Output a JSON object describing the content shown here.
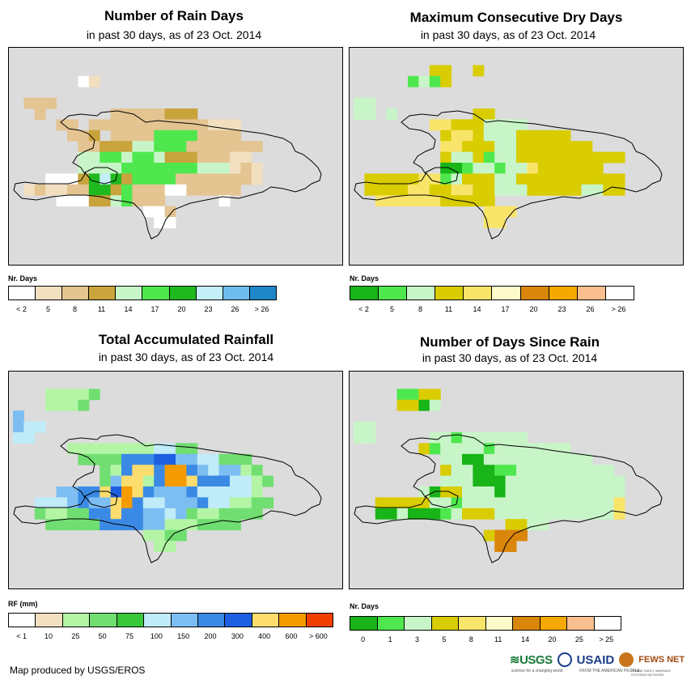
{
  "panels": [
    {
      "id": "rain_days",
      "title": "Number of Rain Days",
      "subtitle": "in past 30 days, as of 23 Oct. 2014",
      "legend_title": "Nr. Days",
      "legend_labels": [
        "< 2",
        "5",
        "8",
        "11",
        "14",
        "17",
        "20",
        "23",
        "26",
        "> 26"
      ],
      "legend_colors": [
        "#ffffff",
        "#f2dfbf",
        "#e4c491",
        "#c9a33c",
        "#c8f5c8",
        "#4ee84e",
        "#1fb91f",
        "#c4eef8",
        "#6fbdee",
        "#1f86c8"
      ],
      "grid": [
        "............................",
        ".......ZZZZ.................",
        ".....ZAB....................",
        "Z...........................",
        "ZCCC........................",
        "ZZC......CCCCCDDD...........",
        "....CCZCCCCCCCCCCCBBB.......",
        ".....CCDZCCCCFFFFCCCC.......",
        "......CCDDDEEFFFCCCCCCC.....",
        "......EEFFEFFEDDDCCCBB......",
        "......EEEEFFFFFFFEEEBCB.....",
        "..ZAAADGHGDFFFFCCCCCCCBZ....",
        ".BCBBCCGGDFCCCAACCCCCZZZ....",
        "..ZZAAADDEFCCC.....AZ.......",
        "............AAC.............",
        ".............AA............."
      ]
    },
    {
      "id": "dry_days",
      "title": "Maximum Consecutive Dry Days",
      "subtitle": "in past 30 days, as of 23 Oct. 2014",
      "legend_title": "Nr. Days",
      "legend_labels": [
        "< 2",
        "5",
        "8",
        "11",
        "14",
        "17",
        "20",
        "23",
        "26",
        "> 26"
      ],
      "legend_colors": [
        "#18b418",
        "#4ee84e",
        "#c8f5c8",
        "#d9cc00",
        "#f9e46a",
        "#fdfacb",
        "#d9860a",
        "#f5a800",
        "#f9bf8f",
        "#ffffff"
      ],
      "grid": [
        "............................",
        ".......DD..D................",
        ".....BCBD...................",
        "............................",
        "CC..........................",
        "CC.C.......DD...............",
        ".......EEDDDCCCC............",
        "........DEEDCCCDDDDD........",
        "........EEDDDCCDDDDDDD......",
        "........DCCDBCCDDDDDDDDDD...",
        "........AABCCBCCEDDDDDD.....",
        ".DDDDDEEBCDDDCCDDDDDDDDDD...",
        ".DDDDEEDDEEDDCCCDDDDDCCDD...",
        "..EEEEEEDDDDD...............",
        "............EEE.............",
        "............EE.............."
      ]
    },
    {
      "id": "rainfall",
      "title": "Total Accumulated Rainfall",
      "subtitle": "in past 30 days, as of 23 Oct. 2014",
      "legend_title": "RF (mm)",
      "legend_labels": [
        "< 1",
        "10",
        "25",
        "50",
        "75",
        "100",
        "150",
        "200",
        "300",
        "400",
        "600",
        "> 600"
      ],
      "legend_colors": [
        "#ffffff",
        "#f2dfbf",
        "#b3f5a5",
        "#71de71",
        "#39c839",
        "#c0ebf8",
        "#7dbef2",
        "#3a8ae5",
        "#1e5ee0",
        "#fcdd6e",
        "#f59b00",
        "#f24000"
      ],
      "grid": [
        "............................",
        "...CCCCD....................",
        "...CCCD.....................",
        "G...........................",
        "GFF.........................",
        "FF...........................",
        ".....CCCCCCCCFFDD...........",
        "......DDDDHHHIIGGFFDDD......",
        "........DCHJJHKKHGFGGCD.....",
        "........DGJJCHKKJHHHFFCD....",
        "....GGHHJIKJHGGGHFFFFFC.....",
        "..FFFGHGGJKHFFGGGHFFCCDD....",
        "..DCCDDHHJHHGGFGDCCDDDD.....",
        "...DDDDDHHHHGGCCCDDDD.......",
        "............CCDD............",
        ".............CC............."
      ]
    },
    {
      "id": "days_since",
      "title": "Number of Days Since Rain",
      "subtitle": "in past 30 days, as of 23 Oct. 2014",
      "legend_title": "Nr. Days",
      "legend_labels": [
        "0",
        "1",
        "3",
        "5",
        "8",
        "11",
        "14",
        "20",
        "25",
        "> 25"
      ],
      "legend_colors": [
        "#18b418",
        "#4ee84e",
        "#c8f5c8",
        "#d9cc00",
        "#f9e46a",
        "#fdfacb",
        "#d9860a",
        "#f5a800",
        "#f9bf8f",
        "#ffffff"
      ],
      "grid": [
        "............................",
        "....BBDD....................",
        "....DDAC....................",
        "............................",
        "CC..........................",
        "CC.....CCBCCCCCC............",
        "......DBCCCCBCCCCCCC........",
        "........CCAACCCCCCCCCC......",
        "........DCCAABBCCCCCCCCC....",
        "........CCCAAACCCCCCCCCCC...",
        "......CADDCCCACCCCCCCCCCC...",
        "..DDDDDCCBCCCCCCCCCCCCCCE...",
        "..AACAAABCDDDCCCCCCCCCCCE...",
        "..............DDCC..........",
        "............DGGG............",
        ".............GG............."
      ]
    }
  ],
  "footer": "Map produced by USGS/EROS",
  "logos": [
    "USGS",
    "USAID",
    "FEWS NET"
  ],
  "logo_taglines": [
    "science for a changing world",
    "FROM THE AMERICAN PEOPLE",
    "FAMINE EARLY WARNING SYSTEMS NETWORK"
  ]
}
